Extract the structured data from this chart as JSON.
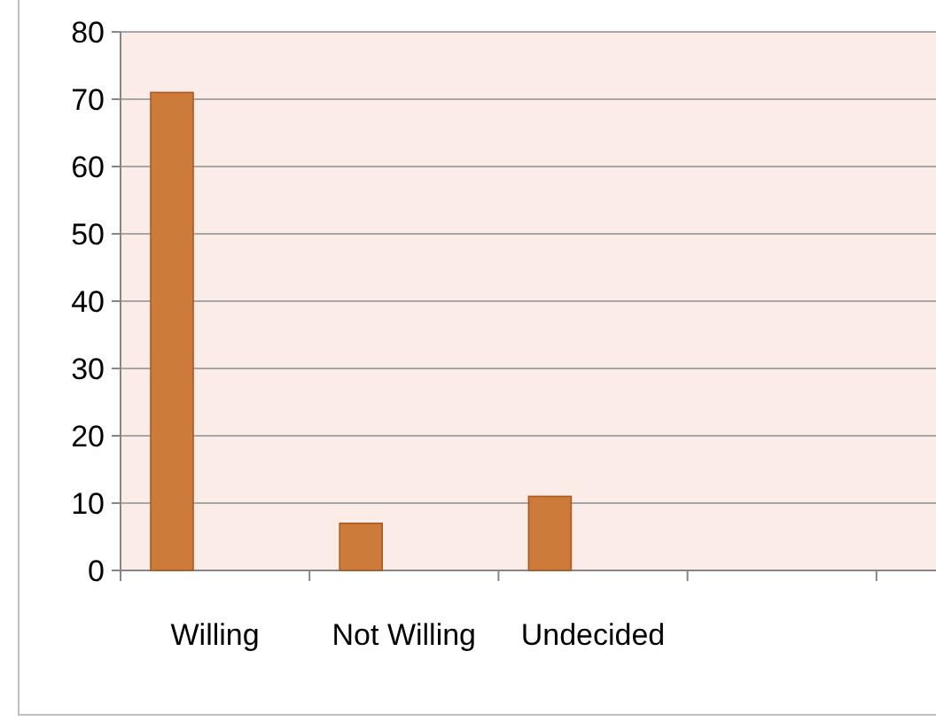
{
  "chart_data": {
    "type": "bar",
    "categories": [
      "Willing",
      "Not Willing",
      "Undecided",
      null,
      null
    ],
    "values": [
      71,
      7,
      11,
      null,
      null
    ],
    "color": "#cd7b3b",
    "ylim": [
      0,
      80
    ],
    "yticks": [
      0,
      10,
      20,
      30,
      40,
      50,
      60,
      70,
      80
    ],
    "grid": "y"
  }
}
